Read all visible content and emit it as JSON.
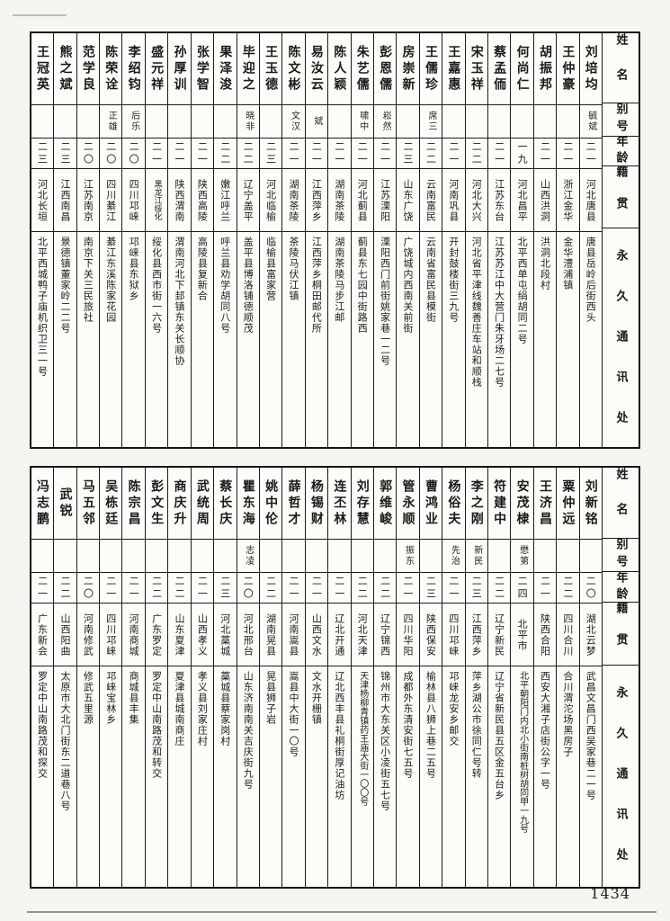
{
  "page": {
    "number": "1434",
    "column_headers": {
      "name": "姓名",
      "alias": "别号",
      "age": "年龄",
      "origin": "籍贯",
      "address": "永久通讯处"
    }
  },
  "tables": [
    {
      "id": "top",
      "entries": [
        {
          "name": "刘培均",
          "alias": "毓斌",
          "age": "二一",
          "origin": "河北唐县",
          "address": "唐县岳岭后街西头"
        },
        {
          "name": "王仲豪",
          "alias": "",
          "age": "二一",
          "origin": "浙江金华",
          "address": "金华澧浦镇"
        },
        {
          "name": "胡振邦",
          "alias": "",
          "age": "二一",
          "origin": "山西洪洞",
          "address": "洪洞北段村"
        },
        {
          "name": "何尚仁",
          "alias": "",
          "age": "一九",
          "origin": "河北昌平",
          "address": "北平西单屯绢胡同二号"
        },
        {
          "name": "蔡孟侕",
          "alias": "",
          "age": "二一",
          "origin": "江苏东台",
          "address": "江苏苏江中大营门朱牙场二七号"
        },
        {
          "name": "宋玉祥",
          "alias": "",
          "age": "二二",
          "origin": "河北大兴",
          "address": "河北省平津线魏善庄车站和顺栈"
        },
        {
          "name": "王嘉惠",
          "alias": "",
          "age": "二一",
          "origin": "河南巩县",
          "address": "开封鼓楼街三九号"
        },
        {
          "name": "王儒珍",
          "alias": "席三",
          "age": "二二",
          "origin": "云南富民",
          "address": "云南省富民县模街"
        },
        {
          "name": "房崇新",
          "alias": "",
          "age": "二三",
          "origin": "山东广饶",
          "address": "广饶城内西南关前街"
        },
        {
          "name": "彭恩儒",
          "alias": "崧然",
          "age": "二一",
          "origin": "江苏溧阳",
          "address": "溧阳西门前街姚家巷一二号"
        },
        {
          "name": "朱艺儒",
          "alias": "啸中",
          "age": "二一",
          "origin": "河北蓟县",
          "address": "蓟县东七园中街路西"
        },
        {
          "name": "陈人颖",
          "alias": "",
          "age": "二一",
          "origin": "湖南茶陵",
          "address": "湖南茶陵马步江邮"
        },
        {
          "name": "易汝云",
          "alias": "斌",
          "age": "二一",
          "origin": "江西萍乡",
          "address": "江西萍乡桐田邮代所"
        },
        {
          "name": "陈文彬",
          "alias": "文汉",
          "age": "二一",
          "origin": "湖南茶陵",
          "address": "茶陵马伏江镇"
        },
        {
          "name": "王玉德",
          "alias": "",
          "age": "二三",
          "origin": "河北临榆",
          "address": "临榆县富家营"
        },
        {
          "name": "毕迎之",
          "alias": "晓非",
          "age": "二二",
          "origin": "辽宁盖平",
          "address": "盖平县博洛铺德顺茂"
        },
        {
          "name": "果泽浚",
          "alias": "",
          "age": "二二",
          "origin": "嫩江呼兰",
          "address": "呼兰县劝学胡同八号"
        },
        {
          "name": "张学智",
          "alias": "",
          "age": "二一",
          "origin": "陕西高陵",
          "address": "高陵县复新合"
        },
        {
          "name": "孙厚训",
          "alias": "",
          "age": "二一",
          "origin": "陕西渭南",
          "address": "渭南河北下邽镇东关长顺协"
        },
        {
          "name": "盛元祥",
          "alias": "",
          "age": "二一",
          "origin": "黑龙江绥化",
          "address": "绥化县西市街一六号"
        },
        {
          "name": "李绍钧",
          "alias": "后乐",
          "age": "二〇",
          "origin": "四川邛崃",
          "address": "邛崃县东狱乡"
        },
        {
          "name": "陈荣诠",
          "alias": "正雄",
          "age": "二〇",
          "origin": "四川綦江",
          "address": "綦江东溪陈家花园"
        },
        {
          "name": "范学良",
          "alias": "",
          "age": "二〇",
          "origin": "江苏南京",
          "address": "南京下关三民旅社"
        },
        {
          "name": "熊之斌",
          "alias": "",
          "age": "二三",
          "origin": "江西南昌",
          "address": "景德镇董家岭二二号"
        },
        {
          "name": "王冠英",
          "alias": "",
          "age": "二三",
          "origin": "河北长垣",
          "address": "北平西城鸭子庙机织卫三一号"
        }
      ]
    },
    {
      "id": "bottom",
      "entries": [
        {
          "name": "刘新铭",
          "alias": "",
          "age": "二〇",
          "origin": "湖北云梦",
          "address": "武昌文昌门西吴家巷二一号"
        },
        {
          "name": "粟仲远",
          "alias": "",
          "age": "二二",
          "origin": "四川合川",
          "address": "合川渭沱场黑房子"
        },
        {
          "name": "王济昌",
          "alias": "",
          "age": "二一",
          "origin": "陕西合阳",
          "address": "西安大湘子店街公字一号"
        },
        {
          "name": "安茂棣",
          "alias": "懋第",
          "age": "二四",
          "origin": "北平市",
          "address": "北平朝阳门内北小街南桩树胡同甲一九号"
        },
        {
          "name": "符建中",
          "alias": "",
          "age": "二二",
          "origin": "辽宁新民",
          "address": "辽宁省新民县五区金五台乡"
        },
        {
          "name": "李之刚",
          "alias": "新民",
          "age": "二三",
          "origin": "江西萍乡",
          "address": "萍乡湖公市徐同仁号转"
        },
        {
          "name": "杨俗夫",
          "alias": "先治",
          "age": "二一",
          "origin": "四川邛崃",
          "address": "邛崃龙安乡邮交"
        },
        {
          "name": "曹鸿业",
          "alias": "",
          "age": "二三",
          "origin": "陕西保安",
          "address": "榆林县八狮上巷二五号"
        },
        {
          "name": "管永顺",
          "alias": "振东",
          "age": "二一",
          "origin": "四川华阳",
          "address": "成都外东清安街七五号"
        },
        {
          "name": "郭维峻",
          "alias": "",
          "age": "二二",
          "origin": "辽宁锦西",
          "address": "锦州市大东关区小凌街五七号"
        },
        {
          "name": "刘存慧",
          "alias": "",
          "age": "二二",
          "origin": "河北天津",
          "address": "天津杨柳青镇药王庙大街一〇〇号"
        },
        {
          "name": "连丕林",
          "alias": "",
          "age": "二一",
          "origin": "辽北开通",
          "address": "辽北西丰县礼桐街厚记油坊"
        },
        {
          "name": "杨锡财",
          "alias": "",
          "age": "二一",
          "origin": "山西文水",
          "address": "文水开栅镇"
        },
        {
          "name": "薛哲才",
          "alias": "",
          "age": "二一",
          "origin": "河南嵩县",
          "address": "嵩县中大街一〇号"
        },
        {
          "name": "姚中伦",
          "alias": "",
          "age": "二二",
          "origin": "湖南晃县",
          "address": "晃县狮子岩"
        },
        {
          "name": "瞿东海",
          "alias": "志凌",
          "age": "二〇",
          "origin": "河北邢台",
          "address": "山东济南南关吉庆街九号"
        },
        {
          "name": "蔡长庆",
          "alias": "",
          "age": "二三",
          "origin": "河北藁城",
          "address": "藁城县蔡家岗村"
        },
        {
          "name": "武统周",
          "alias": "",
          "age": "二一",
          "origin": "山西孝义",
          "address": "孝义县刘家庄村"
        },
        {
          "name": "商庆升",
          "alias": "",
          "age": "二二",
          "origin": "山东夏津",
          "address": "夏津县城南商庄"
        },
        {
          "name": "彭文生",
          "alias": "",
          "age": "二二",
          "origin": "广东罗定",
          "address": "罗定中山南路茂和转交"
        },
        {
          "name": "陈宗昌",
          "alias": "",
          "age": "二一",
          "origin": "河南商城",
          "address": "商城县丰集"
        },
        {
          "name": "吴栋廷",
          "alias": "",
          "age": "二一",
          "origin": "四川邛崃",
          "address": "邛崃宝林乡"
        },
        {
          "name": "马五邻",
          "alias": "",
          "age": "二〇",
          "origin": "河南修武",
          "address": "修武五里源"
        },
        {
          "name": "武锐",
          "alias": "",
          "age": "二二",
          "origin": "山西阳曲",
          "address": "太原市大北门街东二道巷八号"
        },
        {
          "name": "冯志鹏",
          "alias": "",
          "age": "二一",
          "origin": "广东新会",
          "address": "罗定中山南路茂和探交"
        }
      ]
    }
  ]
}
